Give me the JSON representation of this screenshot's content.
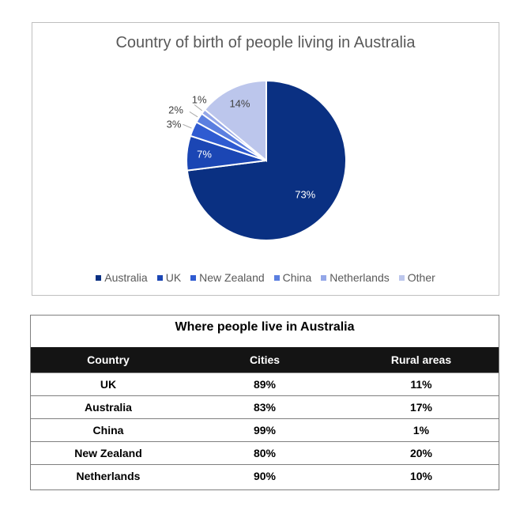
{
  "chart_data": {
    "type": "pie",
    "title": "Country of birth of people living in Australia",
    "categories": [
      "Australia",
      "UK",
      "New Zealand",
      "China",
      "Netherlands",
      "Other"
    ],
    "values": [
      73,
      7,
      3,
      2,
      1,
      14
    ],
    "labels": [
      "73%",
      "7%",
      "3%",
      "2%",
      "1%",
      "14%"
    ],
    "colors": [
      "#0a3082",
      "#1b46b4",
      "#2f5bd1",
      "#5b7fe0",
      "#94a7e8",
      "#bcc6ec"
    ],
    "legend": "bottom",
    "start_angle_deg": 0,
    "direction": "clockwise"
  },
  "table": {
    "title": "Where people live in Australia",
    "headers": [
      "Country",
      "Cities",
      "Rural areas"
    ],
    "rows": [
      [
        "UK",
        "89%",
        "11%"
      ],
      [
        "Australia",
        "83%",
        "17%"
      ],
      [
        "China",
        "99%",
        "1%"
      ],
      [
        "New Zealand",
        "80%",
        "20%"
      ],
      [
        "Netherlands",
        "90%",
        "10%"
      ]
    ]
  }
}
